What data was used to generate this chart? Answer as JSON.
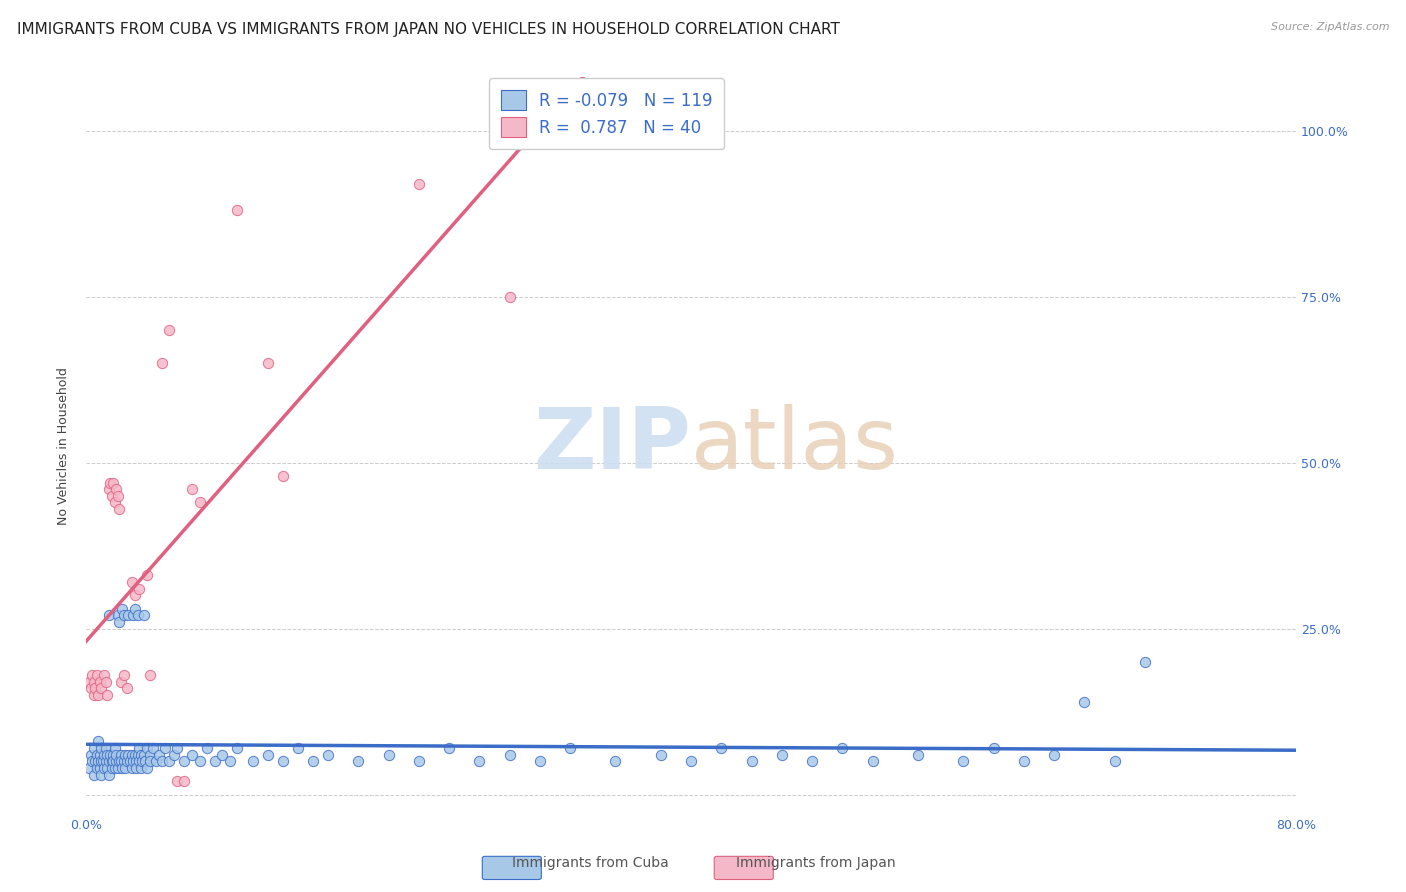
{
  "title": "IMMIGRANTS FROM CUBA VS IMMIGRANTS FROM JAPAN NO VEHICLES IN HOUSEHOLD CORRELATION CHART",
  "source": "Source: ZipAtlas.com",
  "ylabel": "No Vehicles in Household",
  "ytick_labels": [
    "",
    "25.0%",
    "50.0%",
    "75.0%",
    "100.0%"
  ],
  "ytick_values": [
    0.0,
    0.25,
    0.5,
    0.75,
    1.0
  ],
  "xlim": [
    0.0,
    0.8
  ],
  "ylim": [
    -0.03,
    1.08
  ],
  "cuba_R": -0.079,
  "cuba_N": 119,
  "japan_R": 0.787,
  "japan_N": 40,
  "cuba_color": "#a8c8e8",
  "japan_color": "#f5b8c8",
  "cuba_line_color": "#3b6dc8",
  "japan_line_color": "#e06080",
  "legend_label_cuba": "Immigrants from Cuba",
  "legend_label_japan": "Immigrants from Japan",
  "watermark_zip": "ZIP",
  "watermark_atlas": "atlas",
  "background_color": "#ffffff",
  "grid_color": "#cccccc",
  "title_fontsize": 11,
  "cuba_scatter": [
    [
      0.002,
      0.04
    ],
    [
      0.003,
      0.06
    ],
    [
      0.004,
      0.05
    ],
    [
      0.005,
      0.07
    ],
    [
      0.005,
      0.03
    ],
    [
      0.006,
      0.05
    ],
    [
      0.007,
      0.04
    ],
    [
      0.007,
      0.06
    ],
    [
      0.008,
      0.08
    ],
    [
      0.008,
      0.05
    ],
    [
      0.009,
      0.04
    ],
    [
      0.009,
      0.06
    ],
    [
      0.01,
      0.05
    ],
    [
      0.01,
      0.03
    ],
    [
      0.01,
      0.07
    ],
    [
      0.011,
      0.05
    ],
    [
      0.012,
      0.06
    ],
    [
      0.012,
      0.04
    ],
    [
      0.013,
      0.05
    ],
    [
      0.013,
      0.07
    ],
    [
      0.014,
      0.04
    ],
    [
      0.014,
      0.06
    ],
    [
      0.015,
      0.05
    ],
    [
      0.015,
      0.03
    ],
    [
      0.015,
      0.27
    ],
    [
      0.016,
      0.06
    ],
    [
      0.017,
      0.05
    ],
    [
      0.017,
      0.04
    ],
    [
      0.018,
      0.06
    ],
    [
      0.018,
      0.05
    ],
    [
      0.019,
      0.04
    ],
    [
      0.019,
      0.07
    ],
    [
      0.02,
      0.05
    ],
    [
      0.02,
      0.06
    ],
    [
      0.021,
      0.04
    ],
    [
      0.021,
      0.27
    ],
    [
      0.022,
      0.05
    ],
    [
      0.022,
      0.26
    ],
    [
      0.023,
      0.06
    ],
    [
      0.023,
      0.05
    ],
    [
      0.024,
      0.04
    ],
    [
      0.024,
      0.28
    ],
    [
      0.025,
      0.05
    ],
    [
      0.025,
      0.27
    ],
    [
      0.026,
      0.06
    ],
    [
      0.026,
      0.04
    ],
    [
      0.027,
      0.05
    ],
    [
      0.028,
      0.06
    ],
    [
      0.028,
      0.27
    ],
    [
      0.029,
      0.05
    ],
    [
      0.03,
      0.04
    ],
    [
      0.03,
      0.06
    ],
    [
      0.031,
      0.05
    ],
    [
      0.031,
      0.27
    ],
    [
      0.032,
      0.28
    ],
    [
      0.032,
      0.06
    ],
    [
      0.033,
      0.05
    ],
    [
      0.033,
      0.04
    ],
    [
      0.034,
      0.06
    ],
    [
      0.034,
      0.27
    ],
    [
      0.035,
      0.05
    ],
    [
      0.035,
      0.07
    ],
    [
      0.036,
      0.06
    ],
    [
      0.036,
      0.04
    ],
    [
      0.037,
      0.05
    ],
    [
      0.038,
      0.06
    ],
    [
      0.038,
      0.27
    ],
    [
      0.039,
      0.05
    ],
    [
      0.04,
      0.04
    ],
    [
      0.04,
      0.07
    ],
    [
      0.042,
      0.06
    ],
    [
      0.042,
      0.05
    ],
    [
      0.044,
      0.07
    ],
    [
      0.046,
      0.05
    ],
    [
      0.048,
      0.06
    ],
    [
      0.05,
      0.05
    ],
    [
      0.052,
      0.07
    ],
    [
      0.055,
      0.05
    ],
    [
      0.058,
      0.06
    ],
    [
      0.06,
      0.07
    ],
    [
      0.065,
      0.05
    ],
    [
      0.07,
      0.06
    ],
    [
      0.075,
      0.05
    ],
    [
      0.08,
      0.07
    ],
    [
      0.085,
      0.05
    ],
    [
      0.09,
      0.06
    ],
    [
      0.095,
      0.05
    ],
    [
      0.1,
      0.07
    ],
    [
      0.11,
      0.05
    ],
    [
      0.12,
      0.06
    ],
    [
      0.13,
      0.05
    ],
    [
      0.14,
      0.07
    ],
    [
      0.15,
      0.05
    ],
    [
      0.16,
      0.06
    ],
    [
      0.18,
      0.05
    ],
    [
      0.2,
      0.06
    ],
    [
      0.22,
      0.05
    ],
    [
      0.24,
      0.07
    ],
    [
      0.26,
      0.05
    ],
    [
      0.28,
      0.06
    ],
    [
      0.3,
      0.05
    ],
    [
      0.32,
      0.07
    ],
    [
      0.35,
      0.05
    ],
    [
      0.38,
      0.06
    ],
    [
      0.4,
      0.05
    ],
    [
      0.42,
      0.07
    ],
    [
      0.44,
      0.05
    ],
    [
      0.46,
      0.06
    ],
    [
      0.48,
      0.05
    ],
    [
      0.5,
      0.07
    ],
    [
      0.52,
      0.05
    ],
    [
      0.55,
      0.06
    ],
    [
      0.58,
      0.05
    ],
    [
      0.6,
      0.07
    ],
    [
      0.62,
      0.05
    ],
    [
      0.64,
      0.06
    ],
    [
      0.66,
      0.14
    ],
    [
      0.68,
      0.05
    ],
    [
      0.7,
      0.2
    ]
  ],
  "japan_scatter": [
    [
      0.002,
      0.17
    ],
    [
      0.003,
      0.16
    ],
    [
      0.004,
      0.18
    ],
    [
      0.005,
      0.15
    ],
    [
      0.005,
      0.17
    ],
    [
      0.006,
      0.16
    ],
    [
      0.007,
      0.18
    ],
    [
      0.008,
      0.15
    ],
    [
      0.009,
      0.17
    ],
    [
      0.01,
      0.16
    ],
    [
      0.012,
      0.18
    ],
    [
      0.013,
      0.17
    ],
    [
      0.014,
      0.15
    ],
    [
      0.015,
      0.46
    ],
    [
      0.016,
      0.47
    ],
    [
      0.017,
      0.45
    ],
    [
      0.018,
      0.47
    ],
    [
      0.019,
      0.44
    ],
    [
      0.02,
      0.46
    ],
    [
      0.021,
      0.45
    ],
    [
      0.022,
      0.43
    ],
    [
      0.023,
      0.17
    ],
    [
      0.025,
      0.18
    ],
    [
      0.027,
      0.16
    ],
    [
      0.03,
      0.32
    ],
    [
      0.032,
      0.3
    ],
    [
      0.035,
      0.31
    ],
    [
      0.04,
      0.33
    ],
    [
      0.042,
      0.18
    ],
    [
      0.05,
      0.65
    ],
    [
      0.055,
      0.7
    ],
    [
      0.06,
      0.02
    ],
    [
      0.065,
      0.02
    ],
    [
      0.07,
      0.46
    ],
    [
      0.075,
      0.44
    ],
    [
      0.1,
      0.88
    ],
    [
      0.12,
      0.65
    ],
    [
      0.13,
      0.48
    ],
    [
      0.22,
      0.92
    ],
    [
      0.28,
      0.75
    ]
  ]
}
